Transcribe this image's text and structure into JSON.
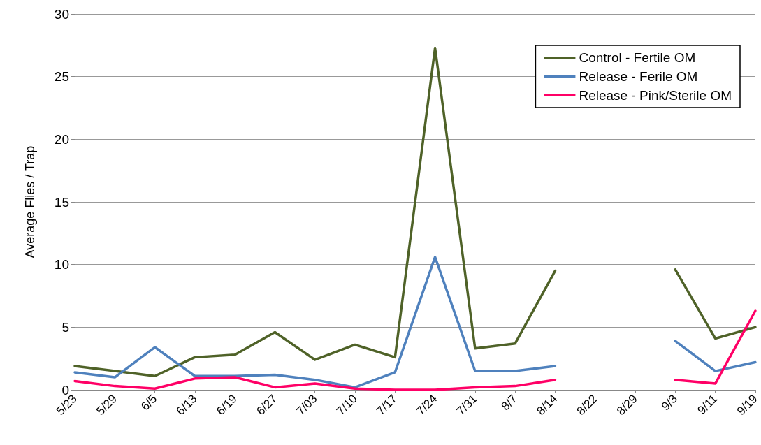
{
  "chart_data": {
    "type": "line",
    "ylabel": "Average Flies / Trap",
    "categories": [
      "5/23",
      "5/29",
      "6/5",
      "6/13",
      "6/19",
      "6/27",
      "7/03",
      "7/10",
      "7/17",
      "7/24",
      "7/31",
      "8/7",
      "8/14",
      "8/22",
      "8/29",
      "9/3",
      "9/11",
      "9/19"
    ],
    "series": [
      {
        "name": "Control - Fertile OM",
        "color": "#4f6228",
        "values": [
          1.9,
          1.5,
          1.1,
          2.6,
          2.8,
          4.6,
          2.4,
          3.6,
          2.6,
          27.3,
          3.3,
          3.7,
          9.5,
          null,
          null,
          9.6,
          4.1,
          5.0
        ]
      },
      {
        "name": "Release - Ferile OM",
        "color": "#4f81bd",
        "values": [
          1.4,
          1.0,
          3.4,
          1.1,
          1.1,
          1.2,
          0.8,
          0.2,
          1.4,
          10.6,
          1.5,
          1.5,
          1.9,
          null,
          null,
          3.9,
          1.5,
          2.2
        ]
      },
      {
        "name": "Release - Pink/Sterile OM",
        "color": "#ff0066",
        "values": [
          0.7,
          0.3,
          0.1,
          0.9,
          1.0,
          0.2,
          0.5,
          0.1,
          0,
          0,
          0.2,
          0.3,
          0.8,
          null,
          null,
          0.8,
          0.5,
          6.3
        ]
      }
    ],
    "ylim": [
      0,
      30
    ],
    "yticks": [
      0,
      5,
      10,
      15,
      20,
      25,
      30
    ],
    "grid": "y",
    "legend": "top right",
    "marker": "none",
    "line_style": "solid"
  }
}
